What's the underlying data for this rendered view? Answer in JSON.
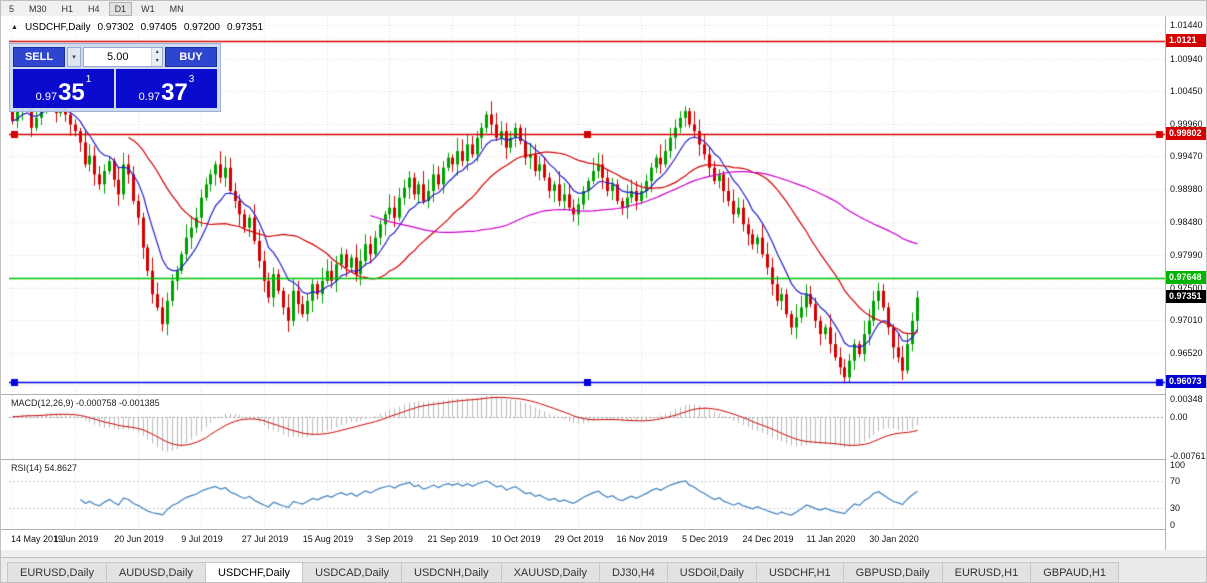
{
  "toolbar": {
    "timeframes": [
      {
        "label": "5",
        "active": false
      },
      {
        "label": "M30",
        "active": false
      },
      {
        "label": "H1",
        "active": false
      },
      {
        "label": "H4",
        "active": false
      },
      {
        "label": "D1",
        "active": true
      },
      {
        "label": "W1",
        "active": false
      },
      {
        "label": "MN",
        "active": false
      }
    ]
  },
  "chart_header": {
    "symbol": "USDCHF,Daily",
    "open": "0.97302",
    "high": "0.97405",
    "low": "0.97200",
    "close": "0.97351"
  },
  "trade_panel": {
    "sell_label": "SELL",
    "buy_label": "BUY",
    "volume": "5.00",
    "bid": {
      "prefix": "0.97",
      "main": "35",
      "pip": "1"
    },
    "ask": {
      "prefix": "0.97",
      "main": "37",
      "pip": "3"
    }
  },
  "price_axis": {
    "tags": [
      {
        "text": "1.0121",
        "price": 1.0121,
        "color": "#d40000"
      },
      {
        "text": "0.99802",
        "price": 0.99802,
        "color": "#d40000"
      },
      {
        "text": "0.97648",
        "price": 0.97648,
        "color": "#00b400"
      },
      {
        "text": "0.97351",
        "price": 0.97351,
        "color": "#000000"
      },
      {
        "text": "0.96073",
        "price": 0.96073,
        "color": "#0000d0"
      }
    ]
  },
  "macd_panel": {
    "label": "MACD(12,26,9) -0.000758 -0.001385",
    "macd_value": "-0.000758",
    "signal_value": "-0.001385",
    "axis_ticks": [
      {
        "text": "0.00348",
        "v": 0.00348
      },
      {
        "text": "0.00",
        "v": 0
      },
      {
        "text": "-0.00761",
        "v": -0.00761
      }
    ]
  },
  "rsi_panel": {
    "label": "RSI(14) 54.8627",
    "value": "54.8627",
    "axis_ticks": [
      {
        "text": "100",
        "v": 100
      },
      {
        "text": "70",
        "v": 70
      },
      {
        "text": "30",
        "v": 30
      },
      {
        "text": "0",
        "v": 0
      }
    ]
  },
  "tabs": {
    "items": [
      "EURUSD,Daily",
      "AUDUSD,Daily",
      "USDCHF,Daily",
      "USDCAD,Daily",
      "USDCNH,Daily",
      "XAUUSD,Daily",
      "DJ30,H4",
      "USDOil,Daily",
      "USDCHF,H1",
      "GBPUSD,Daily",
      "EURUSD,H1",
      "GBPAUD,H1"
    ],
    "active_index": 2
  },
  "chart_data": {
    "type": "candlestick",
    "symbol": "USDCHF",
    "timeframe": "Daily",
    "current_bar": {
      "open": 0.97302,
      "high": 0.97405,
      "low": 0.972,
      "close": 0.97351
    },
    "current_price": 0.97351,
    "first_open": 1.0015,
    "plot_fraction": 0.787,
    "y_range": {
      "top": 1.0158,
      "bottom": 0.959
    },
    "y_ticks": [
      1.0144,
      1.0094,
      1.0045,
      0.9996,
      0.9947,
      0.9898,
      0.9848,
      0.9799,
      0.975,
      0.9701,
      0.9652,
      0.9603
    ],
    "h_lines": [
      {
        "price": 1.0121,
        "color": "#d40000",
        "handles": false
      },
      {
        "price": 0.99802,
        "color": "#d40000",
        "handles": true
      },
      {
        "price": 0.97648,
        "color": "#00c000",
        "handles": false
      },
      {
        "price": 0.96073,
        "color": "#0000e0",
        "handles": true
      }
    ],
    "colors": {
      "up": "#00a000",
      "down": "#d40000",
      "grid": "#dcdcdc"
    },
    "x_labels": [
      "14 May 2019",
      "1 Jun 2019",
      "20 Jun 2019",
      "9 Jul 2019",
      "27 Jul 2019",
      "15 Aug 2019",
      "3 Sep 2019",
      "21 Sep 2019",
      "10 Oct 2019",
      "29 Oct 2019",
      "16 Nov 2019",
      "5 Dec 2019",
      "24 Dec 2019",
      "11 Jan 2020",
      "30 Jan 2020"
    ],
    "label_every": 13,
    "closes": [
      1.0,
      1.0018,
      1.0035,
      1.0022,
      0.999,
      1.0005,
      1.0028,
      1.004,
      1.003,
      1.0012,
      1.0022,
      1.001,
      0.9995,
      0.9985,
      0.9968,
      0.9935,
      0.9948,
      0.992,
      0.9905,
      0.9925,
      0.994,
      0.9912,
      0.989,
      0.9935,
      0.992,
      0.988,
      0.9855,
      0.981,
      0.9775,
      0.974,
      0.972,
      0.9695,
      0.973,
      0.976,
      0.9775,
      0.98,
      0.9825,
      0.984,
      0.9855,
      0.9885,
      0.9905,
      0.992,
      0.9935,
      0.9915,
      0.993,
      0.9895,
      0.988,
      0.986,
      0.984,
      0.9855,
      0.982,
      0.979,
      0.976,
      0.9735,
      0.977,
      0.9745,
      0.972,
      0.97,
      0.9745,
      0.9725,
      0.971,
      0.973,
      0.9755,
      0.974,
      0.976,
      0.9775,
      0.976,
      0.9785,
      0.98,
      0.978,
      0.9795,
      0.977,
      0.979,
      0.9815,
      0.98,
      0.9825,
      0.9845,
      0.986,
      0.987,
      0.9855,
      0.9885,
      0.99,
      0.9915,
      0.989,
      0.9905,
      0.988,
      0.9895,
      0.992,
      0.9905,
      0.993,
      0.9945,
      0.9935,
      0.9955,
      0.994,
      0.9965,
      0.995,
      0.9975,
      0.999,
      1.001,
      0.9995,
      0.9975,
      0.9985,
      0.996,
      0.9975,
      0.999,
      0.997,
      0.9945,
      0.995,
      0.9925,
      0.9935,
      0.9915,
      0.9895,
      0.9905,
      0.988,
      0.989,
      0.987,
      0.986,
      0.9875,
      0.9895,
      0.991,
      0.9925,
      0.9935,
      0.9915,
      0.9895,
      0.9905,
      0.988,
      0.987,
      0.9885,
      0.9895,
      0.988,
      0.9895,
      0.991,
      0.993,
      0.9945,
      0.9935,
      0.9955,
      0.9975,
      0.999,
      1.0005,
      1.0015,
      0.9995,
      0.9985,
      0.9965,
      0.995,
      0.993,
      0.991,
      0.992,
      0.9895,
      0.988,
      0.986,
      0.987,
      0.9845,
      0.983,
      0.9815,
      0.9825,
      0.98,
      0.978,
      0.9755,
      0.973,
      0.974,
      0.971,
      0.969,
      0.9705,
      0.972,
      0.974,
      0.9725,
      0.97,
      0.968,
      0.969,
      0.9665,
      0.9645,
      0.963,
      0.9615,
      0.964,
      0.9665,
      0.965,
      0.968,
      0.97,
      0.973,
      0.9745,
      0.972,
      0.969,
      0.966,
      0.9645,
      0.9625,
      0.9665,
      0.97,
      0.9735
    ],
    "indicators": {
      "ma": [
        {
          "type": "ema",
          "period": 9,
          "color": "#2222cc"
        },
        {
          "type": "sma",
          "period": 25,
          "color": "#d40000"
        },
        {
          "type": "sma",
          "period": 75,
          "color": "#cc00cc"
        }
      ],
      "macd": {
        "fast": 12,
        "slow": 26,
        "signal": 9,
        "value": -0.000758,
        "signal_value": -0.001385,
        "range": {
          "top": 0.0042,
          "bottom": -0.0082
        },
        "hist_color": "#b9b9b9",
        "signal_color": "#cc0000"
      },
      "rsi": {
        "period": 14,
        "value": 54.8627,
        "levels": [
          70,
          30
        ],
        "color": "#4080c0"
      }
    }
  }
}
